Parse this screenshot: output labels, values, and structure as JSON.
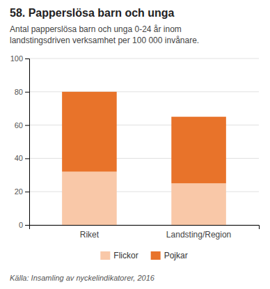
{
  "chart_data": {
    "type": "bar",
    "title": "58. Papperslösa barn och unga",
    "subtitle": [
      "Antal papperslösa barn och unga 0-24 år inom",
      "landstingsdriven verksamhet per 100 000 invånare."
    ],
    "source": "Källa: Insamling av nyckelindikatorer, 2016",
    "categories": [
      "Riket",
      "Landsting/Region"
    ],
    "series": [
      {
        "name": "Flickor",
        "color": "#f9c8a8",
        "values": [
          32,
          25
        ]
      },
      {
        "name": "Pojkar",
        "color": "#e8732a",
        "values": [
          48,
          40
        ]
      }
    ],
    "stacked": true,
    "ylim": [
      0,
      100
    ],
    "yticks": [
      0,
      20,
      40,
      60,
      80,
      100
    ],
    "grid": true,
    "legend": "bottom"
  }
}
